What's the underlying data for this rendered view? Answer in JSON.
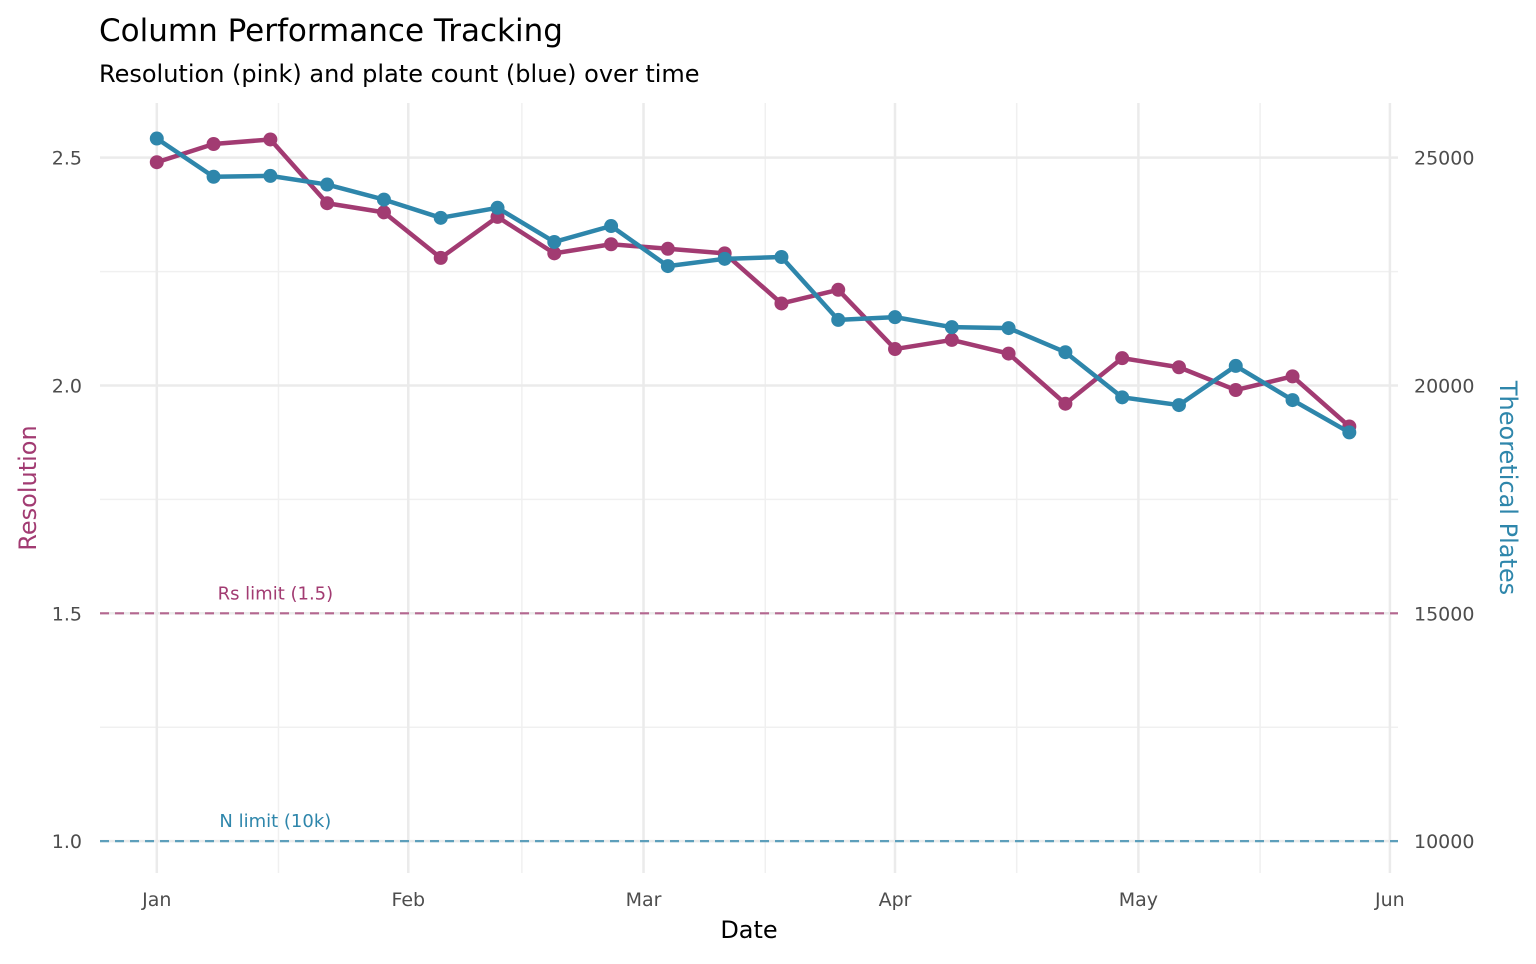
{
  "chart_data": {
    "type": "line",
    "title": "Column Performance Tracking",
    "subtitle": "Resolution (pink) and plate count (blue) over time",
    "xlabel": "Date",
    "ylabel": "Resolution",
    "y2label": "Theoretical Plates",
    "xlim": [
      "2023-12-25",
      "2024-06-02"
    ],
    "ylim": [
      0.93,
      2.62
    ],
    "y2lim": [
      9300,
      26200
    ],
    "x_ticks": [
      {
        "date": "2024-01-01",
        "label": "Jan"
      },
      {
        "date": "2024-02-01",
        "label": "Feb"
      },
      {
        "date": "2024-03-01",
        "label": "Mar"
      },
      {
        "date": "2024-04-01",
        "label": "Apr"
      },
      {
        "date": "2024-05-01",
        "label": "May"
      },
      {
        "date": "2024-06-01",
        "label": "Jun"
      }
    ],
    "y_ticks": [
      "1.0",
      "1.5",
      "2.0",
      "2.5"
    ],
    "y2_ticks": [
      "10000",
      "15000",
      "20000",
      "25000"
    ],
    "grid": true,
    "x": [
      "2024-01-01",
      "2024-01-08",
      "2024-01-15",
      "2024-01-22",
      "2024-01-29",
      "2024-02-05",
      "2024-02-12",
      "2024-02-19",
      "2024-02-26",
      "2024-03-04",
      "2024-03-11",
      "2024-03-18",
      "2024-03-25",
      "2024-04-01",
      "2024-04-08",
      "2024-04-15",
      "2024-04-22",
      "2024-04-29",
      "2024-05-06",
      "2024-05-13",
      "2024-05-20",
      "2024-05-27"
    ],
    "series": [
      {
        "name": "Resolution",
        "axis": "left",
        "color": "#A23B72",
        "values": [
          2.49,
          2.53,
          2.54,
          2.4,
          2.38,
          2.28,
          2.37,
          2.29,
          2.31,
          2.3,
          2.29,
          2.18,
          2.21,
          2.08,
          2.1,
          2.07,
          1.96,
          2.06,
          2.04,
          1.99,
          2.02,
          1.91
        ]
      },
      {
        "name": "Theoretical Plates",
        "axis": "right",
        "color": "#2E86AB",
        "values": [
          25420,
          24580,
          24600,
          24410,
          24080,
          23680,
          23900,
          23150,
          23500,
          22620,
          22780,
          22820,
          21440,
          21500,
          21280,
          21260,
          20730,
          19740,
          19570,
          20430,
          19680,
          18970
        ]
      }
    ],
    "annotations": [
      {
        "label": "Rs limit (1.5)",
        "value": 1.5,
        "axis": "left",
        "color": "#A23B72",
        "date": "2024-01-15"
      },
      {
        "label": "N limit (10k)",
        "value": 10000,
        "axis": "right",
        "color": "#2E86AB",
        "date": "2024-01-15"
      }
    ]
  }
}
